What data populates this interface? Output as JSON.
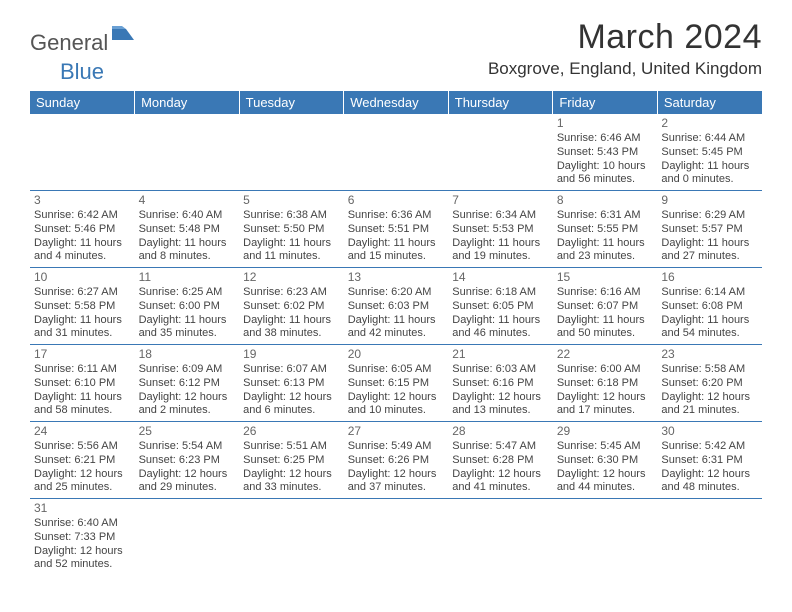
{
  "logo": {
    "text1": "General",
    "text2": "Blue",
    "mark_color": "#3a78b5"
  },
  "title": "March 2024",
  "location": "Boxgrove, England, United Kingdom",
  "header_bg": "#3a78b5",
  "header_fg": "#ffffff",
  "days": [
    "Sunday",
    "Monday",
    "Tuesday",
    "Wednesday",
    "Thursday",
    "Friday",
    "Saturday"
  ],
  "weeks": [
    [
      null,
      null,
      null,
      null,
      null,
      {
        "n": "1",
        "sr": "Sunrise: 6:46 AM",
        "ss": "Sunset: 5:43 PM",
        "dl1": "Daylight: 10 hours",
        "dl2": "and 56 minutes."
      },
      {
        "n": "2",
        "sr": "Sunrise: 6:44 AM",
        "ss": "Sunset: 5:45 PM",
        "dl1": "Daylight: 11 hours",
        "dl2": "and 0 minutes."
      }
    ],
    [
      {
        "n": "3",
        "sr": "Sunrise: 6:42 AM",
        "ss": "Sunset: 5:46 PM",
        "dl1": "Daylight: 11 hours",
        "dl2": "and 4 minutes."
      },
      {
        "n": "4",
        "sr": "Sunrise: 6:40 AM",
        "ss": "Sunset: 5:48 PM",
        "dl1": "Daylight: 11 hours",
        "dl2": "and 8 minutes."
      },
      {
        "n": "5",
        "sr": "Sunrise: 6:38 AM",
        "ss": "Sunset: 5:50 PM",
        "dl1": "Daylight: 11 hours",
        "dl2": "and 11 minutes."
      },
      {
        "n": "6",
        "sr": "Sunrise: 6:36 AM",
        "ss": "Sunset: 5:51 PM",
        "dl1": "Daylight: 11 hours",
        "dl2": "and 15 minutes."
      },
      {
        "n": "7",
        "sr": "Sunrise: 6:34 AM",
        "ss": "Sunset: 5:53 PM",
        "dl1": "Daylight: 11 hours",
        "dl2": "and 19 minutes."
      },
      {
        "n": "8",
        "sr": "Sunrise: 6:31 AM",
        "ss": "Sunset: 5:55 PM",
        "dl1": "Daylight: 11 hours",
        "dl2": "and 23 minutes."
      },
      {
        "n": "9",
        "sr": "Sunrise: 6:29 AM",
        "ss": "Sunset: 5:57 PM",
        "dl1": "Daylight: 11 hours",
        "dl2": "and 27 minutes."
      }
    ],
    [
      {
        "n": "10",
        "sr": "Sunrise: 6:27 AM",
        "ss": "Sunset: 5:58 PM",
        "dl1": "Daylight: 11 hours",
        "dl2": "and 31 minutes."
      },
      {
        "n": "11",
        "sr": "Sunrise: 6:25 AM",
        "ss": "Sunset: 6:00 PM",
        "dl1": "Daylight: 11 hours",
        "dl2": "and 35 minutes."
      },
      {
        "n": "12",
        "sr": "Sunrise: 6:23 AM",
        "ss": "Sunset: 6:02 PM",
        "dl1": "Daylight: 11 hours",
        "dl2": "and 38 minutes."
      },
      {
        "n": "13",
        "sr": "Sunrise: 6:20 AM",
        "ss": "Sunset: 6:03 PM",
        "dl1": "Daylight: 11 hours",
        "dl2": "and 42 minutes."
      },
      {
        "n": "14",
        "sr": "Sunrise: 6:18 AM",
        "ss": "Sunset: 6:05 PM",
        "dl1": "Daylight: 11 hours",
        "dl2": "and 46 minutes."
      },
      {
        "n": "15",
        "sr": "Sunrise: 6:16 AM",
        "ss": "Sunset: 6:07 PM",
        "dl1": "Daylight: 11 hours",
        "dl2": "and 50 minutes."
      },
      {
        "n": "16",
        "sr": "Sunrise: 6:14 AM",
        "ss": "Sunset: 6:08 PM",
        "dl1": "Daylight: 11 hours",
        "dl2": "and 54 minutes."
      }
    ],
    [
      {
        "n": "17",
        "sr": "Sunrise: 6:11 AM",
        "ss": "Sunset: 6:10 PM",
        "dl1": "Daylight: 11 hours",
        "dl2": "and 58 minutes."
      },
      {
        "n": "18",
        "sr": "Sunrise: 6:09 AM",
        "ss": "Sunset: 6:12 PM",
        "dl1": "Daylight: 12 hours",
        "dl2": "and 2 minutes."
      },
      {
        "n": "19",
        "sr": "Sunrise: 6:07 AM",
        "ss": "Sunset: 6:13 PM",
        "dl1": "Daylight: 12 hours",
        "dl2": "and 6 minutes."
      },
      {
        "n": "20",
        "sr": "Sunrise: 6:05 AM",
        "ss": "Sunset: 6:15 PM",
        "dl1": "Daylight: 12 hours",
        "dl2": "and 10 minutes."
      },
      {
        "n": "21",
        "sr": "Sunrise: 6:03 AM",
        "ss": "Sunset: 6:16 PM",
        "dl1": "Daylight: 12 hours",
        "dl2": "and 13 minutes."
      },
      {
        "n": "22",
        "sr": "Sunrise: 6:00 AM",
        "ss": "Sunset: 6:18 PM",
        "dl1": "Daylight: 12 hours",
        "dl2": "and 17 minutes."
      },
      {
        "n": "23",
        "sr": "Sunrise: 5:58 AM",
        "ss": "Sunset: 6:20 PM",
        "dl1": "Daylight: 12 hours",
        "dl2": "and 21 minutes."
      }
    ],
    [
      {
        "n": "24",
        "sr": "Sunrise: 5:56 AM",
        "ss": "Sunset: 6:21 PM",
        "dl1": "Daylight: 12 hours",
        "dl2": "and 25 minutes."
      },
      {
        "n": "25",
        "sr": "Sunrise: 5:54 AM",
        "ss": "Sunset: 6:23 PM",
        "dl1": "Daylight: 12 hours",
        "dl2": "and 29 minutes."
      },
      {
        "n": "26",
        "sr": "Sunrise: 5:51 AM",
        "ss": "Sunset: 6:25 PM",
        "dl1": "Daylight: 12 hours",
        "dl2": "and 33 minutes."
      },
      {
        "n": "27",
        "sr": "Sunrise: 5:49 AM",
        "ss": "Sunset: 6:26 PM",
        "dl1": "Daylight: 12 hours",
        "dl2": "and 37 minutes."
      },
      {
        "n": "28",
        "sr": "Sunrise: 5:47 AM",
        "ss": "Sunset: 6:28 PM",
        "dl1": "Daylight: 12 hours",
        "dl2": "and 41 minutes."
      },
      {
        "n": "29",
        "sr": "Sunrise: 5:45 AM",
        "ss": "Sunset: 6:30 PM",
        "dl1": "Daylight: 12 hours",
        "dl2": "and 44 minutes."
      },
      {
        "n": "30",
        "sr": "Sunrise: 5:42 AM",
        "ss": "Sunset: 6:31 PM",
        "dl1": "Daylight: 12 hours",
        "dl2": "and 48 minutes."
      }
    ],
    [
      {
        "n": "31",
        "sr": "Sunrise: 6:40 AM",
        "ss": "Sunset: 7:33 PM",
        "dl1": "Daylight: 12 hours",
        "dl2": "and 52 minutes."
      },
      null,
      null,
      null,
      null,
      null,
      null
    ]
  ]
}
